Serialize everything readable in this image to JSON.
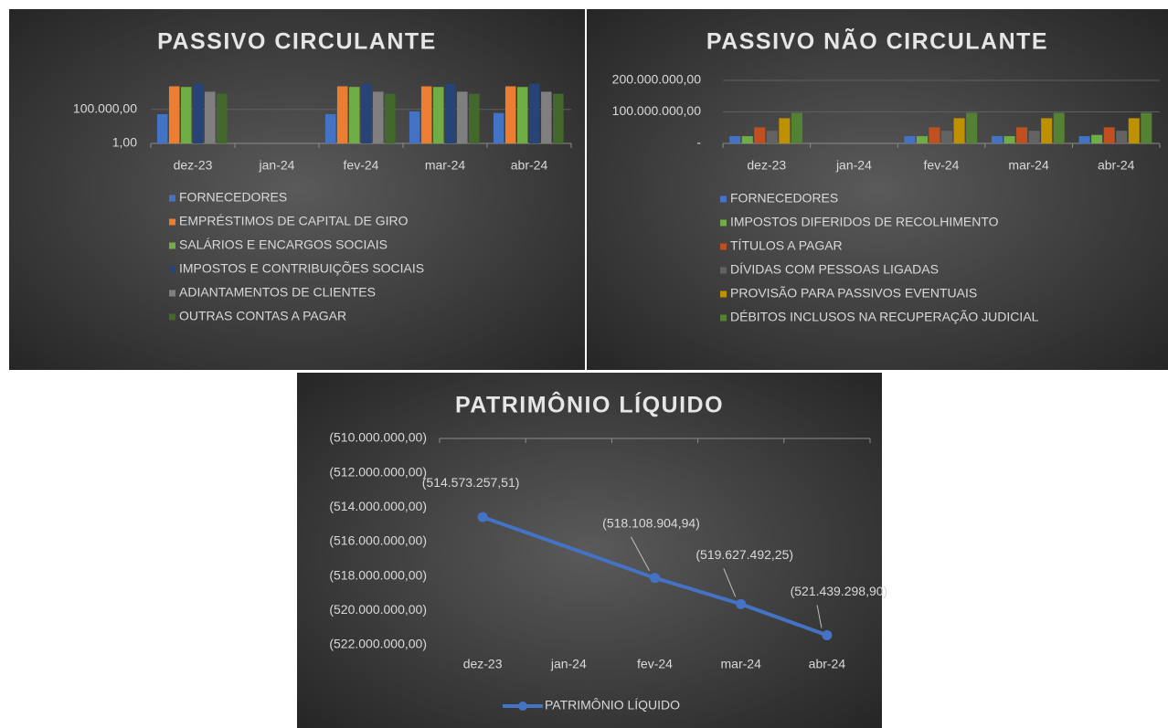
{
  "chart_data": [
    {
      "type": "bar",
      "title": "PASSIVO CIRCULANTE",
      "categories": [
        "dez-23",
        "jan-24",
        "fev-24",
        "mar-24",
        "abr-24"
      ],
      "yscale": "log",
      "ylim": [
        1,
        1000000000
      ],
      "yticks": [
        {
          "value": 1,
          "label": "1,00"
        },
        {
          "value": 100000,
          "label": "100.000,00"
        }
      ],
      "grid": true,
      "legend": "bottom",
      "series": [
        {
          "name": "FORNECEDORES",
          "color": "#4472c4",
          "values": [
            20000,
            null,
            20000,
            50000,
            30000
          ]
        },
        {
          "name": "EMPRÉSTIMOS DE CAPITAL DE GIRO",
          "color": "#ed7d31",
          "values": [
            250000000,
            null,
            250000000,
            250000000,
            250000000
          ]
        },
        {
          "name": "SALÁRIOS E ENCARGOS SOCIAIS",
          "color": "#70ad47",
          "values": [
            200000000,
            null,
            200000000,
            200000000,
            200000000
          ]
        },
        {
          "name": "IMPOSTOS E CONTRIBUIÇÕES SOCIAIS",
          "color": "#264478",
          "values": [
            600000000,
            null,
            600000000,
            600000000,
            600000000
          ]
        },
        {
          "name": "ADIANTAMENTOS DE CLIENTES",
          "color": "#7f7f7f",
          "values": [
            40000000,
            null,
            40000000,
            40000000,
            40000000
          ]
        },
        {
          "name": "OUTRAS CONTAS A PAGAR",
          "color": "#43682b",
          "values": [
            20000000,
            null,
            20000000,
            20000000,
            20000000
          ]
        }
      ]
    },
    {
      "type": "bar",
      "title": "PASSIVO NÃO CIRCULANTE",
      "categories": [
        "dez-23",
        "jan-24",
        "fev-24",
        "mar-24",
        "abr-24"
      ],
      "yscale": "linear",
      "ylim": [
        0,
        200000000
      ],
      "yticks": [
        {
          "value": 0,
          "label": "-"
        },
        {
          "value": 100000000,
          "label": "100.000.000,00"
        },
        {
          "value": 200000000,
          "label": "200.000.000,00"
        }
      ],
      "grid": true,
      "legend": "bottom",
      "series": [
        {
          "name": "FORNECEDORES",
          "color": "#4472c4",
          "values": [
            23000000,
            null,
            23000000,
            23000000,
            23000000
          ]
        },
        {
          "name": "IMPOSTOS DIFERIDOS DE RECOLHIMENTO",
          "color": "#70ad47",
          "values": [
            23000000,
            null,
            23000000,
            23000000,
            27000000
          ]
        },
        {
          "name": "TÍTULOS A PAGAR",
          "color": "#c0501f",
          "values": [
            51000000,
            null,
            51000000,
            51000000,
            51000000
          ]
        },
        {
          "name": "DÍVIDAS COM PESSOAS LIGADAS",
          "color": "#636363",
          "values": [
            40000000,
            null,
            40000000,
            40000000,
            40000000
          ]
        },
        {
          "name": "PROVISÃO PARA PASSIVOS EVENTUAIS",
          "color": "#bf9000",
          "values": [
            80000000,
            null,
            80000000,
            80000000,
            80000000
          ]
        },
        {
          "name": "DÉBITOS INCLUSOS NA RECUPERAÇÃO JUDICIAL",
          "color": "#548235",
          "values": [
            97000000,
            null,
            97000000,
            97000000,
            97000000
          ]
        }
      ]
    },
    {
      "type": "line",
      "title": "PATRIMÔNIO LÍQUIDO",
      "categories": [
        "dez-23",
        "jan-24",
        "fev-24",
        "mar-24",
        "abr-24"
      ],
      "yscale": "linear",
      "ylim": [
        -522000000,
        -510000000
      ],
      "yticks": [
        {
          "value": -510000000,
          "label": "(510.000.000,00)"
        },
        {
          "value": -512000000,
          "label": "(512.000.000,00)"
        },
        {
          "value": -514000000,
          "label": "(514.000.000,00)"
        },
        {
          "value": -516000000,
          "label": "(516.000.000,00)"
        },
        {
          "value": -518000000,
          "label": "(518.000.000,00)"
        },
        {
          "value": -520000000,
          "label": "(520.000.000,00)"
        },
        {
          "value": -522000000,
          "label": "(522.000.000,00)"
        }
      ],
      "grid": false,
      "legend": "bottom",
      "connect_gaps": true,
      "series": [
        {
          "name": "PATRIMÔNIO LÍQUIDO",
          "color": "#4472c4",
          "values": [
            -514573257.51,
            null,
            -518108904.94,
            -519627492.25,
            -521439298.9
          ],
          "value_labels": [
            "(514.573.257,51)",
            null,
            "(518.108.904,94)",
            "(519.627.492,25)",
            "(521.439.298,90)"
          ]
        }
      ]
    }
  ]
}
